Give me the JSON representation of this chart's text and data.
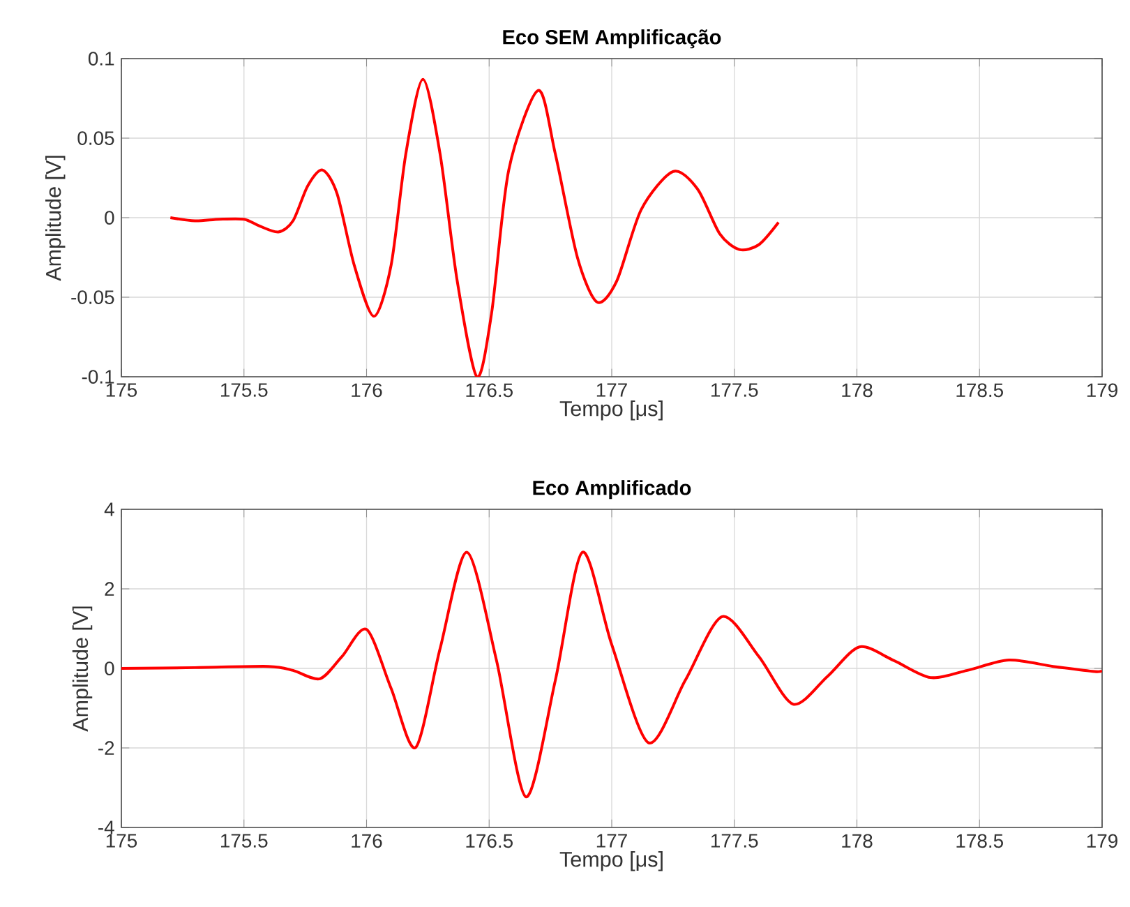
{
  "chart_data": [
    {
      "type": "line",
      "title": "Eco SEM Amplificação",
      "xlabel": "Tempo [μs]",
      "ylabel": "Amplitude [V]",
      "xlim": [
        175,
        179
      ],
      "ylim": [
        -0.1,
        0.1
      ],
      "xticks": [
        175,
        175.5,
        176,
        176.5,
        177,
        177.5,
        178,
        178.5,
        179
      ],
      "yticks": [
        -0.1,
        -0.05,
        0,
        0.05,
        0.1
      ],
      "grid": true,
      "series": [
        {
          "color": "#ff0000",
          "x": [
            175.2,
            175.3,
            175.4,
            175.5,
            175.56,
            175.64,
            175.7,
            175.76,
            175.82,
            175.88,
            175.95,
            176.03,
            176.1,
            176.16,
            176.23,
            176.3,
            176.37,
            176.45,
            176.51,
            176.58,
            176.7,
            176.77,
            176.86,
            176.94,
            177.02,
            177.12,
            177.25,
            177.35,
            177.44,
            177.52,
            177.6,
            177.68
          ],
          "values": [
            0,
            -0.002,
            -0.001,
            -0.001,
            -0.005,
            -0.009,
            -0.002,
            0.02,
            0.03,
            0.015,
            -0.03,
            -0.062,
            -0.03,
            0.04,
            0.087,
            0.04,
            -0.04,
            -0.1,
            -0.06,
            0.03,
            0.08,
            0.04,
            -0.025,
            -0.053,
            -0.04,
            0.005,
            0.029,
            0.018,
            -0.01,
            -0.02,
            -0.017,
            -0.003
          ]
        }
      ]
    },
    {
      "type": "line",
      "title": "Eco Amplificado",
      "xlabel": "Tempo [μs]",
      "ylabel": "Amplitude [V]",
      "xlim": [
        175,
        179
      ],
      "ylim": [
        -4,
        4
      ],
      "xticks": [
        175,
        175.5,
        176,
        176.5,
        177,
        177.5,
        178,
        178.5,
        179
      ],
      "yticks": [
        -4,
        -2,
        0,
        2,
        4
      ],
      "grid": true,
      "series": [
        {
          "color": "#ff0000",
          "x": [
            175,
            175.3,
            175.6,
            175.7,
            175.81,
            175.9,
            176.0,
            176.1,
            176.2,
            176.3,
            176.41,
            176.53,
            176.65,
            176.77,
            176.88,
            177.0,
            177.15,
            177.3,
            177.45,
            177.6,
            177.74,
            177.88,
            178.01,
            178.15,
            178.3,
            178.45,
            178.62,
            178.8,
            178.97,
            179
          ],
          "values": [
            0,
            0.02,
            0.05,
            -0.05,
            -0.26,
            0.3,
            0.98,
            -0.5,
            -1.99,
            0.5,
            2.92,
            0.2,
            -3.23,
            -0.3,
            2.92,
            0.6,
            -1.87,
            -0.3,
            1.3,
            0.3,
            -0.9,
            -0.2,
            0.54,
            0.2,
            -0.23,
            -0.05,
            0.21,
            0.05,
            -0.08,
            -0.05
          ]
        }
      ]
    }
  ]
}
